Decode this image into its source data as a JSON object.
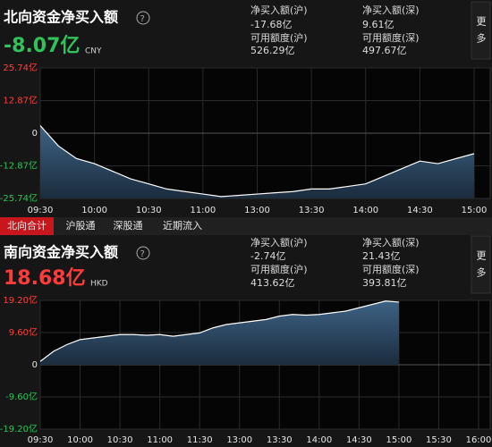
{
  "north": {
    "title": "北向资金净买入额",
    "net": "-8.07亿",
    "currency": "CNY",
    "stats": [
      {
        "label": "净买入额(沪)",
        "value": "-17.68亿"
      },
      {
        "label": "可用额度(沪)",
        "value": "526.29亿"
      },
      {
        "label": "净买入额(深)",
        "value": "9.61亿"
      },
      {
        "label": "可用额度(深)",
        "value": "497.67亿"
      }
    ],
    "more": "更多"
  },
  "tabs": [
    "北向合计",
    "沪股通",
    "深股通",
    "近期流入"
  ],
  "south": {
    "title": "南向资金净买入额",
    "net": "18.68亿",
    "currency": "HKD",
    "stats": [
      {
        "label": "净买入额(沪)",
        "value": "-2.74亿"
      },
      {
        "label": "可用额度(沪)",
        "value": "413.62亿"
      },
      {
        "label": "净买入额(深)",
        "value": "21.43亿"
      },
      {
        "label": "可用额度(深)",
        "value": "393.81亿"
      }
    ],
    "more": "更多"
  },
  "chart_data": [
    {
      "type": "area",
      "categories": [
        "09:30",
        null,
        null,
        "10:00",
        null,
        null,
        "10:30",
        null,
        null,
        "11:00",
        null,
        null,
        "13:00",
        null,
        null,
        "13:30",
        null,
        null,
        "14:00",
        null,
        null,
        "14:30",
        null,
        null,
        "15:00"
      ],
      "series": [
        {
          "color": "#ffffff",
          "values": [
            3,
            -5,
            -10,
            -12,
            -15,
            -18,
            -20,
            -22,
            -23,
            -24,
            -25,
            -24.5,
            -24,
            -23.5,
            -23,
            -22,
            -22,
            -21,
            -20,
            -17,
            -14,
            -11,
            -12,
            -10,
            -8.07
          ]
        }
      ],
      "ylim": [
        -25.74,
        25.74
      ],
      "yticks": [
        {
          "value": -25.74,
          "label": "-25.74亿"
        },
        {
          "value": -12.87,
          "label": "-12.87亿"
        },
        0,
        {
          "value": 12.87,
          "label": "12.87亿"
        },
        {
          "value": 25.74,
          "label": "25.74亿"
        }
      ]
    },
    {
      "type": "area",
      "categories": [
        "09:30",
        null,
        null,
        "10:00",
        null,
        null,
        "10:30",
        null,
        null,
        "11:00",
        null,
        null,
        "11:30",
        null,
        null,
        "13:00",
        null,
        null,
        "13:30",
        null,
        null,
        "14:00",
        null,
        null,
        "14:30",
        null,
        null,
        "15:00",
        null,
        null,
        "15:30",
        null,
        null,
        "16:00"
      ],
      "series": [
        {
          "color": "#ffffff",
          "values": [
            1,
            4,
            6,
            7.5,
            8,
            8.5,
            9,
            9,
            8.8,
            9,
            8.5,
            9,
            9.5,
            11,
            12,
            12.5,
            13,
            13.5,
            14.5,
            15,
            14.8,
            15,
            15.5,
            16,
            17,
            18,
            19,
            18.68,
            null,
            null,
            null,
            null,
            null,
            null
          ]
        }
      ],
      "ylim": [
        -19.2,
        19.2
      ],
      "yticks": [
        {
          "value": -19.2,
          "label": "-19.20亿"
        },
        {
          "value": -9.6,
          "label": "-9.60亿"
        },
        0,
        {
          "value": 9.6,
          "label": "9.60亿"
        },
        {
          "value": 19.2,
          "label": "19.20亿"
        }
      ]
    }
  ]
}
